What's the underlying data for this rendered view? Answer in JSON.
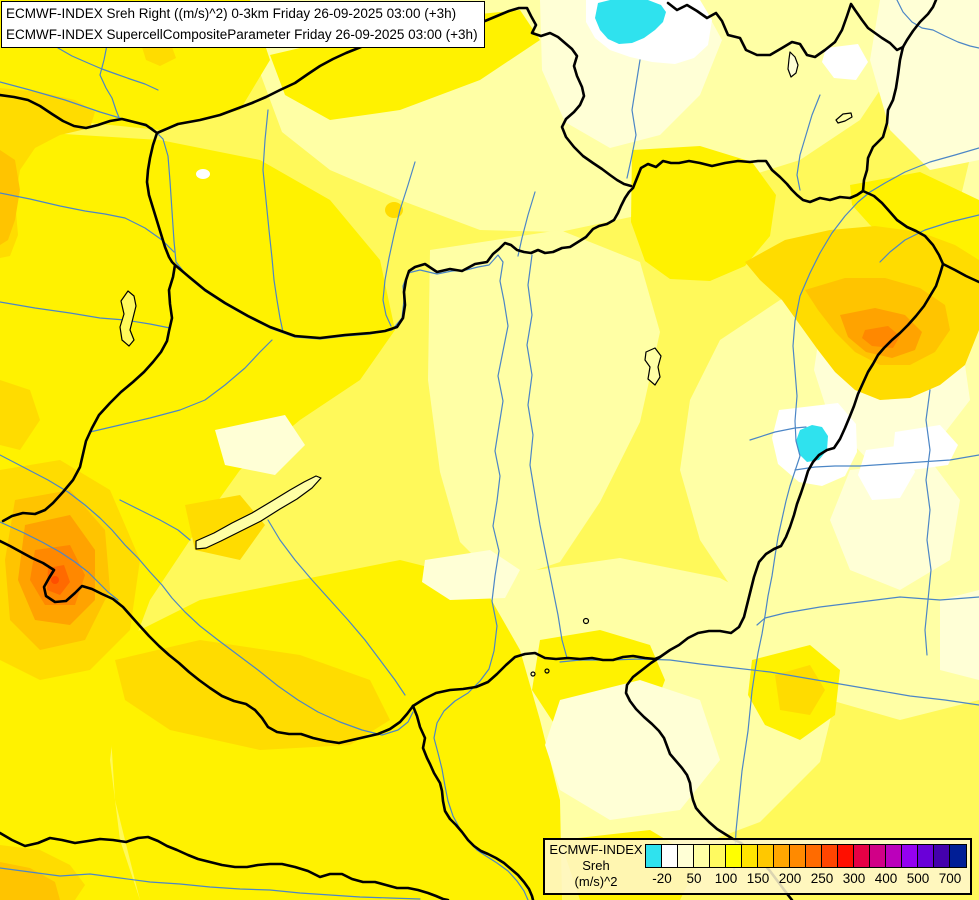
{
  "title_box": {
    "line1": "ECMWF-INDEX Sreh Right ((m/s)^2) 0-3km Friday 26-09-2025 03:00 (+3h)",
    "line2": "ECMWF-INDEX SupercellCompositeParameter Friday 26-09-2025 03:00 (+3h)"
  },
  "legend": {
    "title": "ECMWF-INDEX",
    "param": "Sreh",
    "units": "(m/s)^2",
    "ticks": [
      "-20",
      "50",
      "100",
      "150",
      "200",
      "250",
      "300",
      "400",
      "500",
      "700"
    ],
    "colors": [
      "#2FE2EE",
      "#FFFFFF",
      "#FFFFD6",
      "#FFFFA5",
      "#FFFA60",
      "#FFFF00",
      "#FFE400",
      "#FFC800",
      "#FFA600",
      "#FF8A00",
      "#FF6B00",
      "#FF4500",
      "#FF0F00",
      "#E60045",
      "#D10087",
      "#BB00BB",
      "#9500F0",
      "#6A00D8",
      "#4400AC",
      "#001E96"
    ]
  },
  "map_palette": {
    "base": "#FFF95A",
    "vivid": "#FFF200",
    "pale": "#FFFFA5",
    "cream": "#FFFFD6",
    "white": "#FFFFFF",
    "cyan": "#2FE2EE",
    "gold": "#FFDC00",
    "amber": "#FFC400",
    "orange": "#FFA300",
    "dark_orange": "#FF8800",
    "deep_orange": "#FF6A00",
    "hot": "#FF4E00",
    "border": "#000000",
    "river": "#4C86C6"
  }
}
